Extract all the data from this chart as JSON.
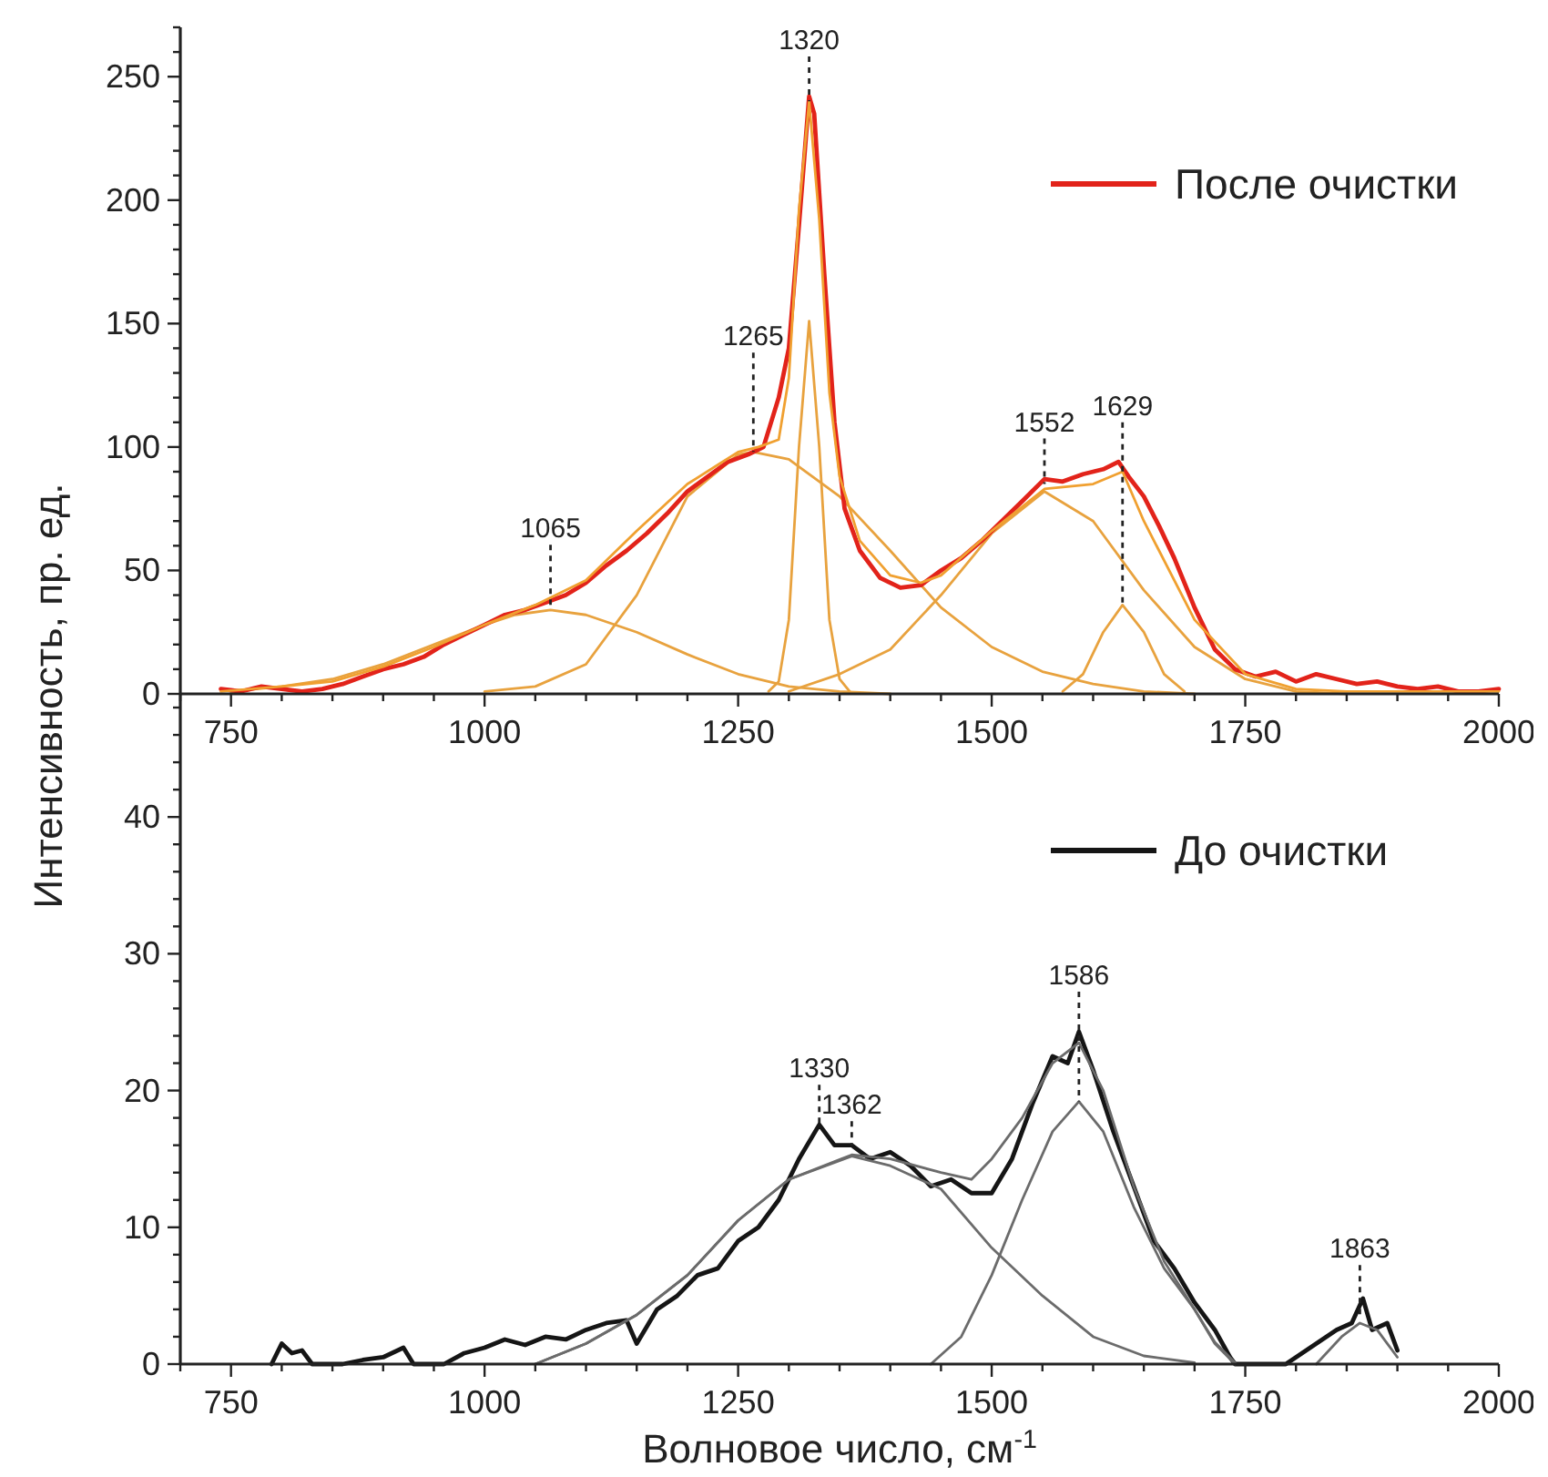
{
  "chart_data": [
    {
      "type": "line",
      "ylabel": "Интенсивность, пр. ед.",
      "xlim": [
        700,
        2000
      ],
      "ylim": [
        0,
        270
      ],
      "legend": "top right",
      "xticks": [
        {
          "value": 700,
          "label": null
        },
        750,
        {
          "value": 800,
          "label": null
        },
        {
          "value": 850,
          "label": null
        },
        {
          "value": 900,
          "label": null
        },
        {
          "value": 950,
          "label": null
        },
        1000,
        {
          "value": 1050,
          "label": null
        },
        {
          "value": 1100,
          "label": null
        },
        {
          "value": 1150,
          "label": null
        },
        {
          "value": 1200,
          "label": null
        },
        1250,
        {
          "value": 1300,
          "label": null
        },
        {
          "value": 1350,
          "label": null
        },
        {
          "value": 1400,
          "label": null
        },
        {
          "value": 1450,
          "label": null
        },
        1500,
        {
          "value": 1550,
          "label": null
        },
        {
          "value": 1600,
          "label": null
        },
        {
          "value": 1650,
          "label": null
        },
        {
          "value": 1700,
          "label": null
        },
        1750,
        {
          "value": 1800,
          "label": null
        },
        {
          "value": 1850,
          "label": null
        },
        {
          "value": 1900,
          "label": null
        },
        {
          "value": 1950,
          "label": null
        },
        2000
      ],
      "yticks": [
        0,
        {
          "value": 10,
          "label": null
        },
        {
          "value": 20,
          "label": null
        },
        {
          "value": 30,
          "label": null
        },
        {
          "value": 40,
          "label": null
        },
        50,
        {
          "value": 60,
          "label": null
        },
        {
          "value": 70,
          "label": null
        },
        {
          "value": 80,
          "label": null
        },
        {
          "value": 90,
          "label": null
        },
        100,
        {
          "value": 110,
          "label": null
        },
        {
          "value": 120,
          "label": null
        },
        {
          "value": 130,
          "label": null
        },
        {
          "value": 140,
          "label": null
        },
        150,
        {
          "value": 160,
          "label": null
        },
        {
          "value": 170,
          "label": null
        },
        {
          "value": 180,
          "label": null
        },
        {
          "value": 190,
          "label": null
        },
        200,
        {
          "value": 210,
          "label": null
        },
        {
          "value": 220,
          "label": null
        },
        {
          "value": 230,
          "label": null
        },
        {
          "value": 240,
          "label": null
        },
        250,
        {
          "value": 260,
          "label": null
        },
        {
          "value": 270,
          "label": null
        }
      ],
      "series": [
        {
          "color": "#e8a23e",
          "x": [
            750,
            800,
            850,
            900,
            950,
            1000,
            1030,
            1065,
            1100,
            1150,
            1200,
            1250,
            1300,
            1350,
            1400
          ],
          "values": [
            1,
            3,
            6,
            12,
            20,
            28,
            32,
            34,
            32,
            25,
            16,
            8,
            3,
            1,
            0
          ]
        },
        {
          "color": "#e8a23e",
          "x": [
            1000,
            1050,
            1100,
            1150,
            1200,
            1250,
            1265,
            1300,
            1350,
            1400,
            1450,
            1500,
            1550,
            1600,
            1650,
            1700
          ],
          "values": [
            1,
            3,
            12,
            40,
            80,
            97,
            98,
            95,
            80,
            58,
            35,
            19,
            9,
            4,
            1,
            0
          ]
        },
        {
          "color": "#e8a23e",
          "x": [
            1280,
            1290,
            1300,
            1310,
            1320,
            1330,
            1340,
            1350,
            1360
          ],
          "values": [
            1,
            5,
            30,
            100,
            151,
            100,
            30,
            6,
            1
          ]
        },
        {
          "color": "#e8a23e",
          "x": [
            1300,
            1350,
            1400,
            1450,
            1500,
            1552,
            1600,
            1650,
            1700,
            1750,
            1800,
            1850
          ],
          "values": [
            1,
            8,
            18,
            40,
            65,
            82,
            70,
            42,
            19,
            6,
            1,
            0
          ]
        },
        {
          "color": "#e8a23e",
          "x": [
            1570,
            1590,
            1610,
            1629,
            1650,
            1670,
            1690
          ],
          "values": [
            1,
            8,
            25,
            36,
            25,
            8,
            1
          ]
        },
        {
          "name": "После очистки",
          "color": "#e2231a",
          "x": [
            740,
            760,
            780,
            800,
            820,
            840,
            860,
            880,
            900,
            920,
            940,
            960,
            980,
            1000,
            1020,
            1040,
            1060,
            1080,
            1100,
            1120,
            1140,
            1160,
            1180,
            1200,
            1220,
            1240,
            1260,
            1275,
            1290,
            1300,
            1310,
            1320,
            1325,
            1335,
            1345,
            1355,
            1370,
            1390,
            1410,
            1430,
            1450,
            1470,
            1490,
            1510,
            1530,
            1552,
            1570,
            1590,
            1610,
            1625,
            1635,
            1650,
            1665,
            1680,
            1700,
            1720,
            1740,
            1760,
            1780,
            1800,
            1820,
            1840,
            1860,
            1880,
            1900,
            1920,
            1940,
            1960,
            1980,
            2000
          ],
          "values": [
            2,
            1,
            3,
            2,
            1,
            2,
            4,
            7,
            10,
            12,
            15,
            20,
            24,
            28,
            32,
            34,
            37,
            40,
            45,
            52,
            58,
            65,
            73,
            82,
            88,
            94,
            97,
            100,
            120,
            140,
            190,
            242,
            235,
            170,
            110,
            75,
            58,
            47,
            43,
            44,
            50,
            55,
            62,
            70,
            78,
            87,
            86,
            89,
            91,
            94,
            88,
            80,
            68,
            55,
            35,
            18,
            10,
            7,
            9,
            5,
            8,
            6,
            4,
            5,
            3,
            2,
            3,
            1,
            1,
            2
          ]
        },
        {
          "color": "#f0a030",
          "x": [
            740,
            800,
            850,
            900,
            950,
            1000,
            1050,
            1100,
            1150,
            1200,
            1250,
            1270,
            1290,
            1300,
            1310,
            1320,
            1330,
            1340,
            1350,
            1370,
            1400,
            1430,
            1450,
            1500,
            1552,
            1600,
            1629,
            1650,
            1700,
            1750,
            1800,
            1850,
            2000
          ],
          "values": [
            1,
            3,
            5,
            11,
            19,
            28,
            36,
            46,
            66,
            85,
            98,
            100,
            103,
            128,
            196,
            240,
            192,
            122,
            88,
            62,
            48,
            45,
            48,
            66,
            83,
            85,
            90,
            70,
            30,
            8,
            2,
            1,
            1
          ]
        }
      ],
      "annotations": [
        {
          "text": "1065",
          "x": 1065,
          "y": 34
        },
        {
          "text": "1265",
          "x": 1265,
          "y": 98
        },
        {
          "text": "1320",
          "x": 1320,
          "y": 240
        },
        {
          "text": "1552",
          "x": 1552,
          "y": 85
        },
        {
          "text": "1629",
          "x": 1629,
          "y": 36
        }
      ]
    },
    {
      "type": "line",
      "xlabel": "Волновое число, см$^{-1}$",
      "xlim": [
        700,
        2000
      ],
      "ylim": [
        0,
        49
      ],
      "legend": "top right",
      "xticks": [
        {
          "value": 700,
          "label": null
        },
        750,
        {
          "value": 800,
          "label": null
        },
        {
          "value": 850,
          "label": null
        },
        {
          "value": 900,
          "label": null
        },
        {
          "value": 950,
          "label": null
        },
        1000,
        {
          "value": 1050,
          "label": null
        },
        {
          "value": 1100,
          "label": null
        },
        {
          "value": 1150,
          "label": null
        },
        {
          "value": 1200,
          "label": null
        },
        1250,
        {
          "value": 1300,
          "label": null
        },
        {
          "value": 1350,
          "label": null
        },
        {
          "value": 1400,
          "label": null
        },
        {
          "value": 1450,
          "label": null
        },
        1500,
        {
          "value": 1550,
          "label": null
        },
        {
          "value": 1600,
          "label": null
        },
        {
          "value": 1650,
          "label": null
        },
        {
          "value": 1700,
          "label": null
        },
        1750,
        {
          "value": 1800,
          "label": null
        },
        {
          "value": 1850,
          "label": null
        },
        {
          "value": 1900,
          "label": null
        },
        {
          "value": 1950,
          "label": null
        },
        2000
      ],
      "yticks": [
        0,
        {
          "value": 2,
          "label": null
        },
        {
          "value": 4,
          "label": null
        },
        {
          "value": 6,
          "label": null
        },
        {
          "value": 8,
          "label": null
        },
        10,
        {
          "value": 12,
          "label": null
        },
        {
          "value": 14,
          "label": null
        },
        {
          "value": 16,
          "label": null
        },
        {
          "value": 18,
          "label": null
        },
        20,
        {
          "value": 22,
          "label": null
        },
        {
          "value": 24,
          "label": null
        },
        {
          "value": 26,
          "label": null
        },
        {
          "value": 28,
          "label": null
        },
        30,
        {
          "value": 32,
          "label": null
        },
        {
          "value": 34,
          "label": null
        },
        {
          "value": 36,
          "label": null
        },
        {
          "value": 38,
          "label": null
        },
        40,
        {
          "value": 42,
          "label": null
        },
        {
          "value": 44,
          "label": null
        },
        {
          "value": 46,
          "label": null
        },
        {
          "value": 48,
          "label": null
        }
      ],
      "series": [
        {
          "name": "До очистки",
          "color": "#151515",
          "x": [
            790,
            800,
            810,
            820,
            830,
            860,
            880,
            900,
            920,
            930,
            960,
            980,
            1000,
            1020,
            1040,
            1060,
            1080,
            1100,
            1120,
            1140,
            1150,
            1170,
            1190,
            1210,
            1230,
            1250,
            1270,
            1290,
            1310,
            1330,
            1345,
            1362,
            1380,
            1400,
            1420,
            1440,
            1460,
            1480,
            1500,
            1520,
            1540,
            1560,
            1575,
            1586,
            1600,
            1620,
            1640,
            1660,
            1680,
            1700,
            1720,
            1735,
            1740,
            1790,
            1800,
            1820,
            1840,
            1855,
            1866,
            1875,
            1890,
            1900
          ],
          "values": [
            0,
            1.5,
            0.8,
            1,
            0,
            0,
            0.3,
            0.5,
            1.2,
            0,
            0,
            0.8,
            1.2,
            1.8,
            1.4,
            2,
            1.8,
            2.5,
            3,
            3.2,
            1.5,
            4,
            5,
            6.5,
            7,
            9,
            10,
            12,
            15,
            17.5,
            16,
            16,
            15,
            15.5,
            14.5,
            13,
            13.5,
            12.5,
            12.5,
            15,
            19,
            22.5,
            22,
            24.3,
            21.5,
            17,
            13,
            9,
            7,
            4.5,
            2.5,
            0.5,
            0,
            0,
            0.5,
            1.5,
            2.5,
            3,
            4.8,
            2.5,
            3,
            1
          ]
        },
        {
          "color": "#6b6b6b",
          "x": [
            1050,
            1100,
            1150,
            1200,
            1250,
            1300,
            1362,
            1400,
            1450,
            1500,
            1550,
            1600,
            1650,
            1700
          ],
          "values": [
            0,
            1.5,
            3.6,
            6.5,
            10.5,
            13.5,
            15.2,
            14.5,
            12.8,
            8.5,
            5,
            2,
            0.6,
            0.1
          ]
        },
        {
          "color": "#6b6b6b",
          "x": [
            1440,
            1470,
            1500,
            1530,
            1560,
            1586,
            1610,
            1640,
            1670,
            1700,
            1720,
            1740
          ],
          "values": [
            0,
            2,
            6.5,
            12,
            17,
            19.2,
            17,
            11.5,
            7,
            4,
            1.5,
            0
          ]
        },
        {
          "color": "#6b6b6b",
          "x": [
            1820,
            1845,
            1863,
            1880,
            1900
          ],
          "values": [
            0,
            2,
            3,
            2.5,
            0.5
          ]
        },
        {
          "color": "#6b6b6b",
          "x": [
            1050,
            1100,
            1150,
            1200,
            1250,
            1300,
            1362,
            1400,
            1450,
            1480,
            1500,
            1530,
            1560,
            1586,
            1610,
            1640,
            1670,
            1700,
            1720,
            1740
          ],
          "values": [
            0,
            1.5,
            3.6,
            6.5,
            10.5,
            13.5,
            15.3,
            15,
            14,
            13.5,
            15,
            18,
            22,
            23.5,
            20,
            13,
            7.5,
            4,
            1.6,
            0.1
          ]
        }
      ],
      "annotations": [
        {
          "text": "1330",
          "x": 1330,
          "y": 17.5
        },
        {
          "text": "1362",
          "x": 1362,
          "y": 16
        },
        {
          "text": "1586",
          "x": 1586,
          "y": 19.2
        },
        {
          "text": "1863",
          "x": 1863,
          "y": 3.5
        }
      ]
    }
  ]
}
